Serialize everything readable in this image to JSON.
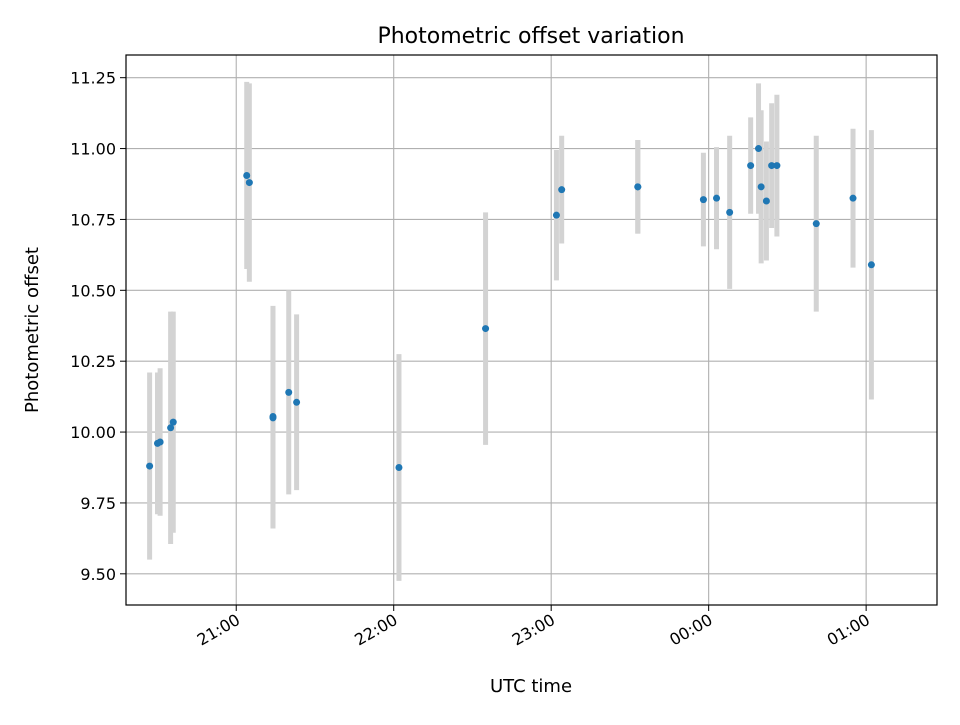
{
  "chart_data": {
    "type": "scatter",
    "title": "Photometric offset variation",
    "xlabel": "UTC time",
    "ylabel": "Photometric offset",
    "x_format": "HH:MM",
    "xlim": [
      "20:18",
      "01:27"
    ],
    "ylim": [
      9.39,
      11.33
    ],
    "grid": true,
    "y_ticks": [
      9.5,
      9.75,
      10.0,
      10.25,
      10.5,
      10.75,
      11.0,
      11.25
    ],
    "y_tick_labels": [
      "9.50",
      "9.75",
      "10.00",
      "10.25",
      "10.50",
      "10.75",
      "11.00",
      "11.25"
    ],
    "x_ticks": [
      "21:00",
      "22:00",
      "23:00",
      "00:00",
      "01:00"
    ],
    "marker_color": "#1f77b4",
    "errorbar_color": "#d3d3d3",
    "points": [
      {
        "t": "20:27",
        "y": 9.88,
        "err": 0.33
      },
      {
        "t": "20:30",
        "y": 9.96,
        "err": 0.25
      },
      {
        "t": "20:31",
        "y": 9.965,
        "err": 0.26
      },
      {
        "t": "20:35",
        "y": 10.015,
        "err": 0.41
      },
      {
        "t": "20:36",
        "y": 10.035,
        "err": 0.39
      },
      {
        "t": "21:04",
        "y": 10.905,
        "err": 0.33
      },
      {
        "t": "21:05",
        "y": 10.88,
        "err": 0.35
      },
      {
        "t": "21:14",
        "y": 10.055,
        "err": 0.39
      },
      {
        "t": "21:14",
        "y": 10.05,
        "err": 0.39
      },
      {
        "t": "21:20",
        "y": 10.14,
        "err": 0.36
      },
      {
        "t": "21:23",
        "y": 10.105,
        "err": 0.31
      },
      {
        "t": "22:02",
        "y": 9.875,
        "err": 0.4
      },
      {
        "t": "22:35",
        "y": 10.365,
        "err": 0.41
      },
      {
        "t": "23:02",
        "y": 10.765,
        "err": 0.23
      },
      {
        "t": "23:04",
        "y": 10.855,
        "err": 0.19
      },
      {
        "t": "23:33",
        "y": 10.865,
        "err": 0.165
      },
      {
        "t": "23:33",
        "y": 10.865,
        "err": 0.165
      },
      {
        "t": "23:58",
        "y": 10.82,
        "err": 0.165
      },
      {
        "t": "00:03",
        "y": 10.825,
        "err": 0.18
      },
      {
        "t": "00:08",
        "y": 10.775,
        "err": 0.27
      },
      {
        "t": "00:16",
        "y": 10.94,
        "err": 0.17
      },
      {
        "t": "00:19",
        "y": 11.0,
        "err": 0.23
      },
      {
        "t": "00:20",
        "y": 10.865,
        "err": 0.27
      },
      {
        "t": "00:22",
        "y": 10.815,
        "err": 0.21
      },
      {
        "t": "00:24",
        "y": 10.94,
        "err": 0.22
      },
      {
        "t": "00:26",
        "y": 10.94,
        "err": 0.25
      },
      {
        "t": "00:41",
        "y": 10.735,
        "err": 0.31
      },
      {
        "t": "00:55",
        "y": 10.825,
        "err": 0.245
      },
      {
        "t": "01:02",
        "y": 10.59,
        "err": 0.475
      }
    ]
  }
}
